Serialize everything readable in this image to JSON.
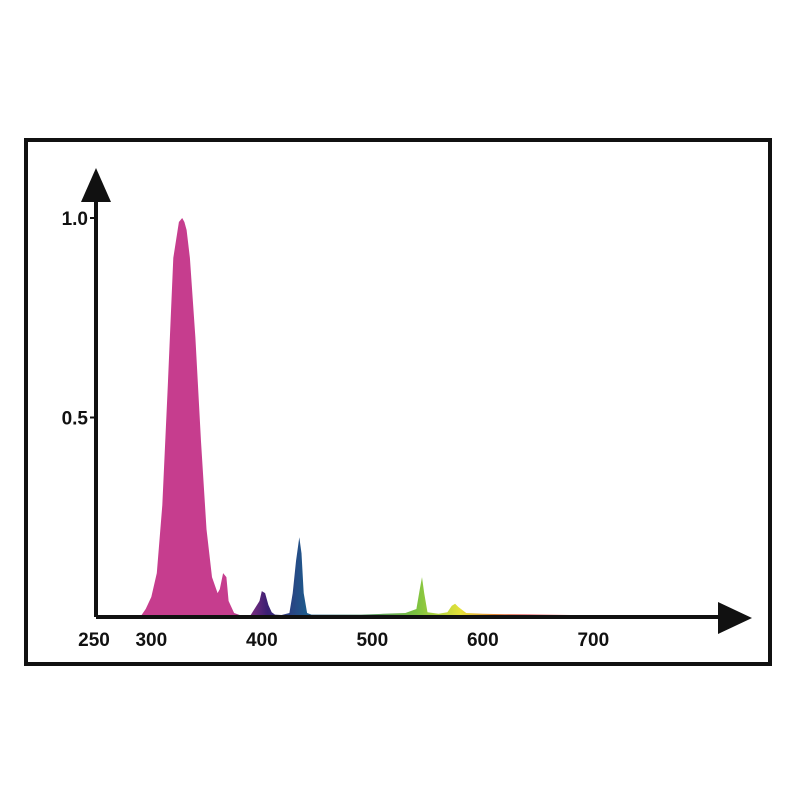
{
  "chart_data": {
    "type": "area",
    "title": "",
    "xlabel": "",
    "ylabel": "",
    "xlim": [
      250,
      760
    ],
    "ylim": [
      0,
      1.0
    ],
    "grid": false,
    "x_ticks": [
      {
        "value": 250,
        "label": "250"
      },
      {
        "value": 300,
        "label": "300"
      },
      {
        "value": 400,
        "label": "400"
      },
      {
        "value": 500,
        "label": "500"
      },
      {
        "value": 600,
        "label": "600"
      },
      {
        "value": 700,
        "label": "700"
      }
    ],
    "y_ticks": [
      {
        "value": 0.5,
        "label": "0.5"
      },
      {
        "value": 1.0,
        "label": "1.0"
      }
    ],
    "spectrum_colors": {
      "uv_peak": "#c63d8e",
      "violet": "#3b1f73",
      "blue": "#1e5a8c",
      "green": "#7cc240",
      "yellow": "#e6e23a",
      "red": "#d9262b"
    },
    "series": [
      {
        "x": [
          290,
          295,
          300,
          305,
          310,
          315,
          320,
          325,
          328,
          330,
          332,
          335,
          340,
          345,
          350,
          355,
          360,
          362,
          365,
          368,
          370,
          375,
          380,
          390,
          398,
          400,
          403,
          406,
          409,
          412,
          418,
          425,
          428,
          431,
          434,
          436,
          438,
          441,
          445,
          455,
          470,
          490,
          510,
          530,
          540,
          543,
          545,
          547,
          550,
          560,
          568,
          572,
          575,
          578,
          585,
          600,
          620,
          650,
          680,
          720,
          750
        ],
        "y": [
          0.0,
          0.02,
          0.05,
          0.11,
          0.28,
          0.58,
          0.9,
          0.99,
          1.0,
          0.99,
          0.97,
          0.9,
          0.7,
          0.44,
          0.22,
          0.1,
          0.06,
          0.07,
          0.11,
          0.1,
          0.04,
          0.01,
          0.005,
          0.005,
          0.04,
          0.065,
          0.06,
          0.03,
          0.012,
          0.006,
          0.005,
          0.01,
          0.06,
          0.14,
          0.2,
          0.16,
          0.06,
          0.01,
          0.006,
          0.006,
          0.006,
          0.006,
          0.008,
          0.01,
          0.02,
          0.07,
          0.1,
          0.06,
          0.012,
          0.008,
          0.012,
          0.028,
          0.033,
          0.025,
          0.01,
          0.008,
          0.007,
          0.006,
          0.005,
          0.004,
          0.0
        ]
      }
    ]
  }
}
